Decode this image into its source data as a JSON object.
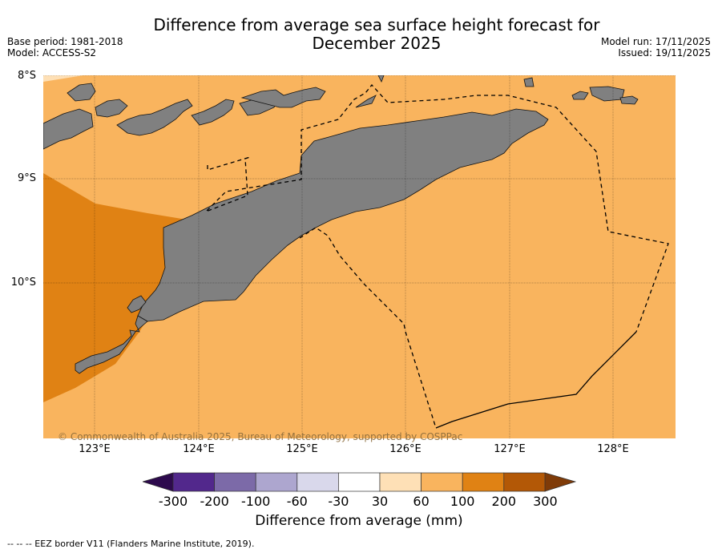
{
  "title_line1": "Difference from average sea surface height forecast for",
  "title_line2": "December 2025",
  "base_period": "Base period: 1981-2018",
  "model": "Model: ACCESS-S2",
  "model_run": "Model run: 17/11/2025",
  "issued": "Issued: 19/11/2025",
  "lat_labels": [
    "8°S",
    "9°S",
    "10°S"
  ],
  "lon_labels": [
    "123°E",
    "124°E",
    "125°E",
    "126°E",
    "127°E",
    "128°E"
  ],
  "copyright": "© Commonwealth of Australia 2025, Bureau of Meteorology, supported by COSPPac",
  "colorbar": {
    "ticks": [
      "-300",
      "-200",
      "-100",
      "-60",
      "-30",
      "30",
      "60",
      "100",
      "200",
      "300"
    ],
    "colors": [
      "#52288c",
      "#7c6aa8",
      "#ada6cf",
      "#d9d8eb",
      "#ffffff",
      "#fee0b6",
      "#f9b45e",
      "#e08214",
      "#b35806"
    ],
    "extend_low_color": "#2d0a4d",
    "extend_high_color": "#7f3b08",
    "label": "Difference from average (mm)"
  },
  "legend_text": "--  --  -- EEZ border V11 (Flanders Marine Institute, 2019).",
  "colors": {
    "ocean_main": "#f9b45e",
    "ocean_strong": "#e08214",
    "land": "#808080"
  }
}
